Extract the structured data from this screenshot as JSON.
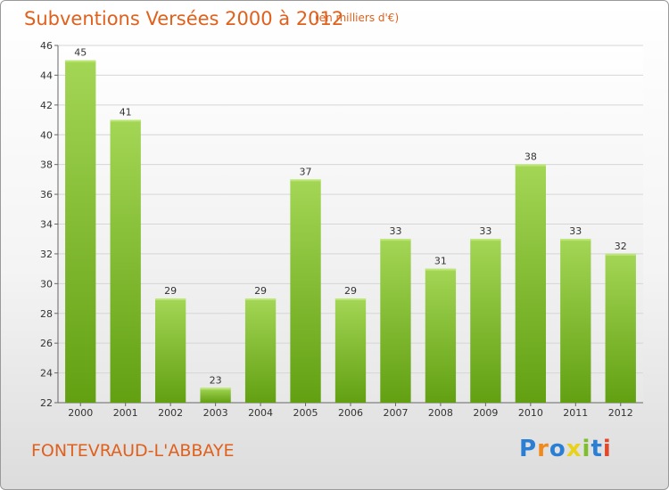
{
  "title": "Subventions Versées 2000 à 2012",
  "subtitle": "(en milliers d'€)",
  "commune": "FONTEVRAUD-L'ABBAYE",
  "logo": {
    "text": "Proxiti",
    "letters": [
      {
        "ch": "P",
        "color": "#2a7fd4"
      },
      {
        "ch": "r",
        "color": "#f08a1c"
      },
      {
        "ch": "o",
        "color": "#2a7fd4"
      },
      {
        "ch": "x",
        "color": "#e8d21a"
      },
      {
        "ch": "i",
        "color": "#7cbf2a"
      },
      {
        "ch": "t",
        "color": "#2a7fd4"
      },
      {
        "ch": "i",
        "color": "#e04a2a"
      }
    ]
  },
  "colors": {
    "title": "#e0601c",
    "bar_light": "#a3d655",
    "bar_dark": "#62a012",
    "grid": "#d6d6d6"
  },
  "chart_data": {
    "type": "bar",
    "categories": [
      "2000",
      "2001",
      "2002",
      "2003",
      "2004",
      "2005",
      "2006",
      "2007",
      "2008",
      "2009",
      "2010",
      "2011",
      "2012"
    ],
    "values": [
      45,
      41,
      29,
      23,
      29,
      37,
      29,
      33,
      31,
      33,
      38,
      33,
      32
    ],
    "ylim": [
      22,
      46
    ],
    "yticks": [
      22,
      24,
      26,
      28,
      30,
      32,
      34,
      36,
      38,
      40,
      42,
      44,
      46
    ],
    "grid": true
  }
}
